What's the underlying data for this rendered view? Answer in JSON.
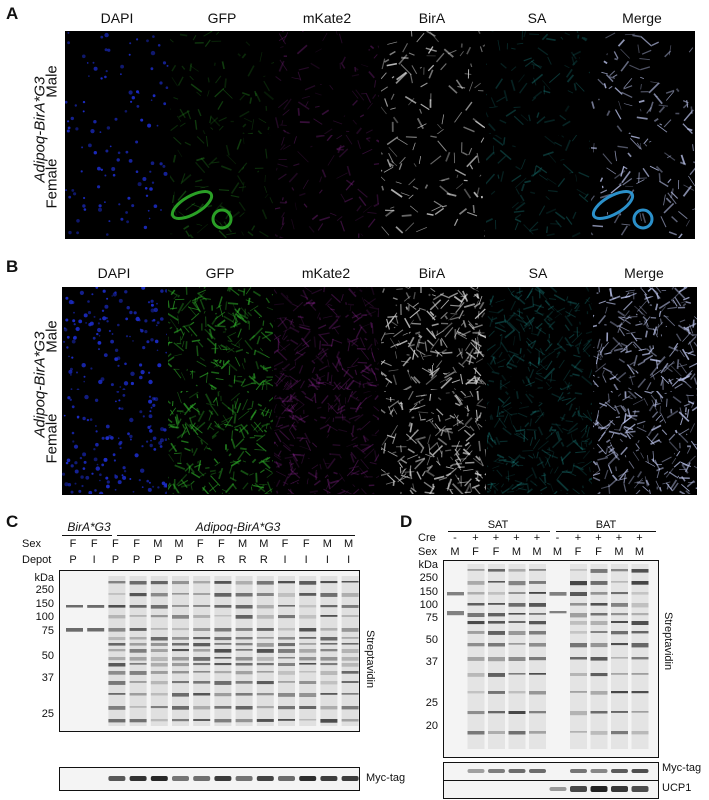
{
  "panels": {
    "A": {
      "label": "A",
      "columns": [
        "DAPI",
        "GFP",
        "mKate2",
        "BirA",
        "SA",
        "Merge"
      ],
      "genotype": "Adipoq-BirA*G3",
      "rows": [
        "Male",
        "Female"
      ]
    },
    "B": {
      "label": "B",
      "columns": [
        "DAPI",
        "GFP",
        "mKate2",
        "BirA",
        "SA",
        "Merge"
      ],
      "genotype": "Adipoq-BirA*G3",
      "rows": [
        "Male",
        "Female"
      ]
    },
    "C": {
      "label": "C",
      "group1": "BirA*G3",
      "group2": "Adipoq-BirA*G3",
      "sex_label": "Sex",
      "depot_label": "Depot",
      "kda_label": "kDa",
      "sex": [
        "F",
        "F",
        "F",
        "F",
        "M",
        "M",
        "F",
        "F",
        "M",
        "M",
        "F",
        "F",
        "M",
        "M"
      ],
      "depot": [
        "P",
        "I",
        "P",
        "P",
        "P",
        "P",
        "R",
        "R",
        "R",
        "R",
        "I",
        "I",
        "I",
        "I"
      ],
      "markers": [
        "250",
        "150",
        "100",
        "75",
        "50",
        "37",
        "25"
      ],
      "blot_label": "Streptavidin",
      "loading_label": "Myc-tag"
    },
    "D": {
      "label": "D",
      "group1": "SAT",
      "group2": "BAT",
      "cre_label": "Cre",
      "sex_label": "Sex",
      "kda_label": "kDa",
      "cre": [
        "-",
        "+",
        "+",
        "+",
        "+",
        "-",
        "+",
        "+",
        "+",
        "+"
      ],
      "sex": [
        "M",
        "F",
        "F",
        "M",
        "M",
        "M",
        "F",
        "F",
        "M",
        "M"
      ],
      "markers": [
        "250",
        "150",
        "100",
        "75",
        "50",
        "37",
        "25",
        "20"
      ],
      "blot_label": "Streptavidin",
      "loading1": "Myc-tag",
      "loading2": "UCP1"
    }
  },
  "colors": {
    "dapi": "#1c2cc8",
    "gfp": "#2fb02a",
    "mkate2": "#a02aa8",
    "bira": "#d8d8d8",
    "sa": "#1f9c9a",
    "merge": "#b8c0e8"
  }
}
